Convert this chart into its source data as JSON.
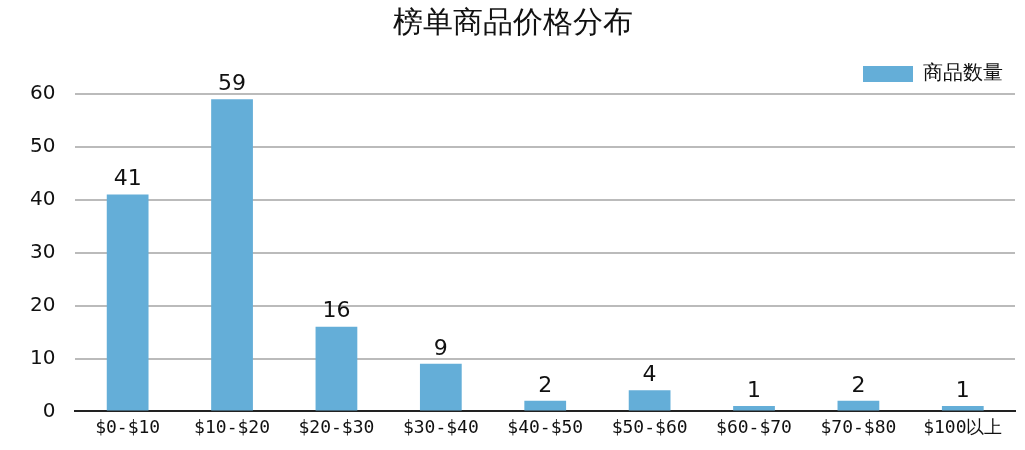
{
  "chart_data": {
    "type": "bar",
    "title": "榜单商品价格分布",
    "categories": [
      "$0-$10",
      "$10-$20",
      "$20-$30",
      "$30-$40",
      "$40-$50",
      "$50-$60",
      "$60-$70",
      "$70-$80",
      "$100以上"
    ],
    "series": [
      {
        "name": "商品数量",
        "color": "#64aed8",
        "values": [
          41,
          59,
          16,
          9,
          2,
          4,
          1,
          2,
          1
        ]
      }
    ],
    "ylim": [
      0,
      60
    ],
    "yticks": [
      0,
      10,
      20,
      30,
      40,
      50,
      60
    ],
    "grid": "y",
    "legend": "top right",
    "data_labels": true
  }
}
